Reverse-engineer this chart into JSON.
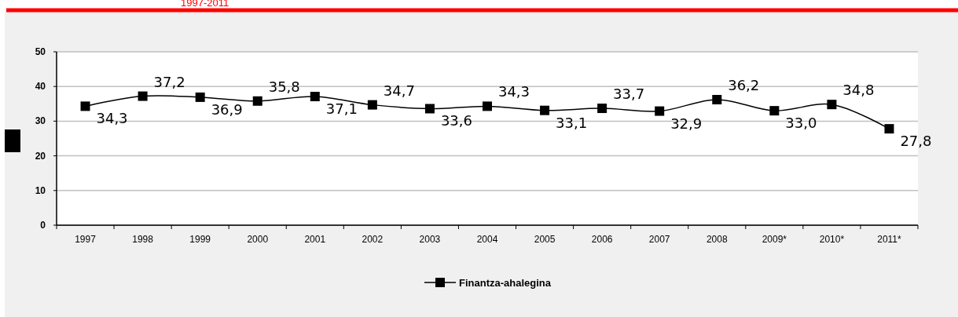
{
  "chart_data": {
    "type": "line",
    "title": "1997-2011",
    "categories": [
      "1997",
      "1998",
      "1999",
      "2000",
      "2001",
      "2002",
      "2003",
      "2004",
      "2005",
      "2006",
      "2007",
      "2008",
      "2009*",
      "2010*",
      "2011*"
    ],
    "series": [
      {
        "name": "Finantza-ahalegina",
        "color": "#000000",
        "values": [
          34.3,
          37.2,
          36.9,
          35.8,
          37.1,
          34.7,
          33.6,
          34.3,
          33.1,
          33.7,
          32.9,
          36.2,
          33.0,
          34.8,
          27.8
        ],
        "value_labels": [
          "34,3",
          "37,2",
          "36,9",
          "35,8",
          "37,1",
          "34,7",
          "33,6",
          "34,3",
          "33,1",
          "33,7",
          "32,9",
          "36,2",
          "33,0",
          "34,8",
          "27,8"
        ]
      }
    ],
    "ylim": [
      0,
      50
    ],
    "yticks": [
      0,
      10,
      20,
      30,
      40,
      50
    ],
    "grid": "y",
    "legend": "bottom",
    "marker": "square",
    "line_style": "solid"
  }
}
